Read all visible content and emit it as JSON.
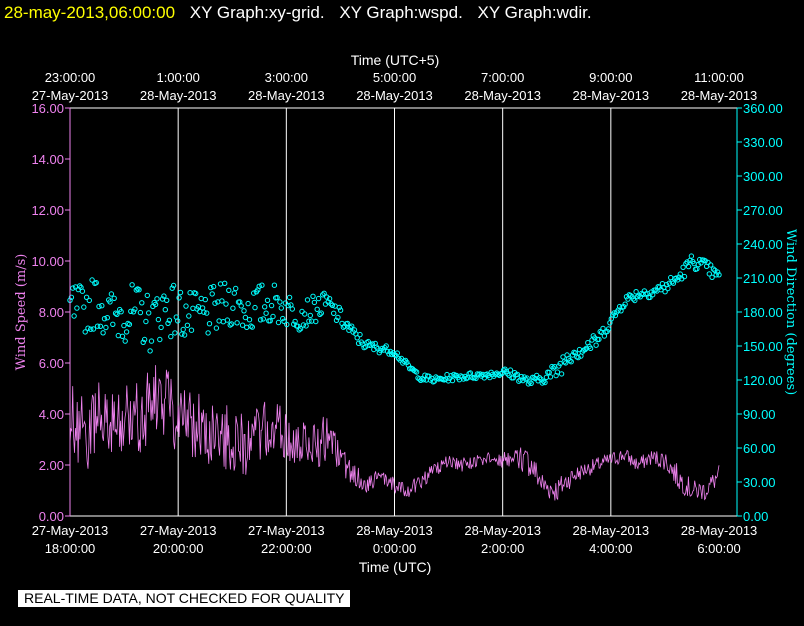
{
  "header": {
    "timestamp": "28-may-2013,06:00:00",
    "graphs": [
      "XY Graph:xy-grid.",
      "XY Graph:wspd.",
      "XY Graph:wdir."
    ]
  },
  "notice": "REAL-TIME DATA, NOT CHECKED FOR QUALITY",
  "colors": {
    "timestamp": "#ffff00",
    "text": "#ffffff",
    "wind_speed": "#ee82ee",
    "wind_direction": "#00ffff",
    "grid": "#ffffff"
  },
  "chart_data": {
    "type": "line+scatter",
    "top_axis": {
      "title": "Time (UTC+5)",
      "ticks": [
        {
          "time": "23:00:00",
          "date": "27-May-2013"
        },
        {
          "time": "1:00:00",
          "date": "28-May-2013"
        },
        {
          "time": "3:00:00",
          "date": "28-May-2013"
        },
        {
          "time": "5:00:00",
          "date": "28-May-2013"
        },
        {
          "time": "7:00:00",
          "date": "28-May-2013"
        },
        {
          "time": "9:00:00",
          "date": "28-May-2013"
        },
        {
          "time": "11:00:00",
          "date": "28-May-2013"
        }
      ]
    },
    "bottom_axis": {
      "title": "Time (UTC)",
      "ticks": [
        {
          "date": "27-May-2013",
          "time": "18:00:00"
        },
        {
          "date": "27-May-2013",
          "time": "20:00:00"
        },
        {
          "date": "27-May-2013",
          "time": "22:00:00"
        },
        {
          "date": "28-May-2013",
          "time": "0:00:00"
        },
        {
          "date": "28-May-2013",
          "time": "2:00:00"
        },
        {
          "date": "28-May-2013",
          "time": "4:00:00"
        },
        {
          "date": "28-May-2013",
          "time": "6:00:00"
        }
      ],
      "range_hours": [
        0,
        12
      ]
    },
    "left_axis": {
      "title": "Wind Speed (m/s)",
      "min": 0,
      "max": 16,
      "tick_labels": [
        "0.00",
        "2.00",
        "4.00",
        "6.00",
        "8.00",
        "10.00",
        "12.00",
        "14.00",
        "16.00"
      ]
    },
    "right_axis": {
      "title": "Wind Direction (degrees)",
      "min": 0,
      "max": 360,
      "tick_labels": [
        "0.00",
        "30.00",
        "60.00",
        "90.00",
        "120.00",
        "150.00",
        "180.00",
        "210.00",
        "240.00",
        "270.00",
        "300.00",
        "330.00",
        "360.00"
      ]
    },
    "series": [
      {
        "name": "Wind Speed",
        "style": "line",
        "axis": "left",
        "unit": "m/s",
        "x_hours": [
          0,
          0.25,
          0.5,
          0.75,
          1,
          1.25,
          1.5,
          1.75,
          2,
          2.25,
          2.5,
          2.75,
          3,
          3.25,
          3.5,
          3.75,
          4,
          4.25,
          4.5,
          4.75,
          5,
          5.25,
          5.5,
          5.75,
          6,
          6.25,
          6.5,
          6.75,
          7,
          7.25,
          7.5,
          7.75,
          8,
          8.25,
          8.5,
          8.75,
          9,
          9.25,
          9.5,
          9.75,
          10,
          10.25,
          10.5,
          10.75,
          11,
          11.25,
          11.5,
          11.75,
          12
        ],
        "values": [
          3.6,
          3.2,
          3.8,
          3.4,
          4.0,
          3.7,
          4.4,
          4.5,
          4.0,
          3.6,
          3.4,
          3.2,
          3.0,
          2.8,
          3.2,
          3.4,
          3.0,
          2.9,
          2.8,
          3.0,
          2.2,
          1.6,
          1.3,
          1.5,
          1.2,
          1.0,
          1.4,
          1.8,
          2.1,
          2.0,
          2.1,
          2.2,
          2.2,
          2.3,
          2.1,
          1.2,
          1.0,
          1.5,
          1.8,
          2.0,
          2.2,
          2.4,
          2.0,
          2.3,
          2.2,
          1.5,
          1.0,
          1.0,
          1.6
        ],
        "variability_mps": [
          1.6,
          1.6,
          1.5,
          1.5,
          1.4,
          1.5,
          1.6,
          1.6,
          1.5,
          1.4,
          1.4,
          1.3,
          1.3,
          1.2,
          1.2,
          1.2,
          1.1,
          1.0,
          0.9,
          1.0,
          0.6,
          0.4,
          0.4,
          0.3,
          0.3,
          0.3,
          0.3,
          0.3,
          0.3,
          0.3,
          0.3,
          0.3,
          0.3,
          0.4,
          0.6,
          0.5,
          0.5,
          0.4,
          0.3,
          0.3,
          0.3,
          0.3,
          0.3,
          0.3,
          0.4,
          0.5,
          0.4,
          0.4,
          0.4
        ]
      },
      {
        "name": "Wind Direction",
        "style": "circle-markers",
        "axis": "right",
        "unit": "degrees",
        "x_hours": [
          0,
          0.25,
          0.5,
          0.75,
          1,
          1.25,
          1.5,
          1.75,
          2,
          2.25,
          2.5,
          2.75,
          3,
          3.25,
          3.5,
          3.75,
          4,
          4.25,
          4.5,
          4.75,
          5,
          5.25,
          5.5,
          5.75,
          6,
          6.25,
          6.5,
          6.75,
          7,
          7.25,
          7.5,
          7.75,
          8,
          8.25,
          8.5,
          8.75,
          9,
          9.25,
          9.5,
          9.75,
          10,
          10.25,
          10.5,
          10.75,
          11,
          11.25,
          11.5,
          11.75,
          12
        ],
        "values": [
          185,
          182,
          190,
          175,
          180,
          178,
          170,
          185,
          180,
          175,
          178,
          182,
          190,
          180,
          185,
          188,
          183,
          178,
          182,
          188,
          175,
          160,
          150,
          148,
          145,
          132,
          122,
          120,
          122,
          123,
          124,
          125,
          127,
          124,
          118,
          122,
          128,
          145,
          148,
          155,
          172,
          190,
          196,
          198,
          202,
          210,
          225,
          220,
          210
        ],
        "variability_deg": [
          22,
          22,
          24,
          24,
          26,
          26,
          26,
          26,
          24,
          22,
          22,
          22,
          22,
          20,
          20,
          18,
          16,
          14,
          12,
          10,
          8,
          6,
          5,
          4,
          3,
          3,
          3,
          3,
          3,
          3,
          3,
          3,
          4,
          4,
          4,
          5,
          8,
          10,
          8,
          6,
          5,
          5,
          5,
          5,
          6,
          6,
          6,
          6,
          6
        ]
      }
    ]
  }
}
